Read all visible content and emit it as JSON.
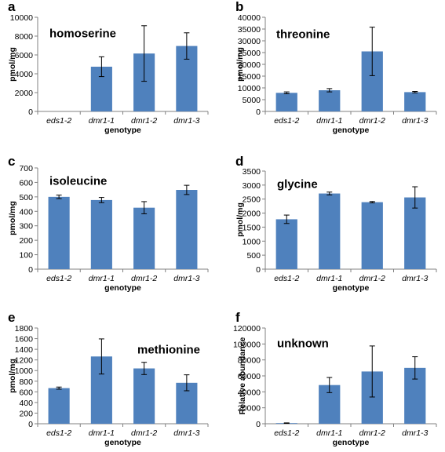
{
  "chart_data": [
    {
      "panel": "a",
      "type": "bar",
      "title": "homoserine",
      "categories": [
        "eds1-2",
        "dmr1-1",
        "dmr1-2",
        "dmr1-3"
      ],
      "values": [
        0,
        4750,
        6150,
        6950
      ],
      "errors": [
        0,
        1050,
        2950,
        1400
      ],
      "xlabel": "genotype",
      "ylabel": "pmol/mg",
      "ylim": [
        0,
        10000
      ],
      "yticks": [
        "0",
        "2000",
        "4000",
        "6000",
        "8000",
        "10000"
      ]
    },
    {
      "panel": "b",
      "type": "bar",
      "title": "threonine",
      "categories": [
        "eds1-2",
        "dmr1-1",
        "dmr1-2",
        "dmr1-3"
      ],
      "values": [
        7900,
        9000,
        25500,
        8200
      ],
      "errors": [
        400,
        700,
        10300,
        300
      ],
      "xlabel": "genotype",
      "ylabel": "pmol/mg",
      "ylim": [
        0,
        40000
      ],
      "yticks": [
        "0",
        "5000",
        "10000",
        "15000",
        "20000",
        "25000",
        "30000",
        "35000",
        "40000"
      ]
    },
    {
      "panel": "c",
      "type": "bar",
      "title": "isoleucine",
      "categories": [
        "eds1-2",
        "dmr1-1",
        "dmr1-2",
        "dmr1-3"
      ],
      "values": [
        500,
        478,
        425,
        548
      ],
      "errors": [
        12,
        18,
        42,
        32
      ],
      "xlabel": "genotype",
      "ylabel": "pmol/mg",
      "ylim": [
        0,
        700
      ],
      "yticks": [
        "0",
        "100",
        "200",
        "300",
        "400",
        "500",
        "600",
        "700"
      ]
    },
    {
      "panel": "d",
      "type": "bar",
      "title": "glycine",
      "categories": [
        "eds1-2",
        "dmr1-1",
        "dmr1-2",
        "dmr1-3"
      ],
      "values": [
        1780,
        2700,
        2390,
        2560
      ],
      "errors": [
        150,
        50,
        25,
        380
      ],
      "xlabel": "genotype",
      "ylabel": "pmol/mg",
      "ylim": [
        0,
        3500
      ],
      "yticks": [
        "0",
        "500",
        "1000",
        "1500",
        "2000",
        "2500",
        "3000",
        "3500"
      ]
    },
    {
      "panel": "e",
      "type": "bar",
      "title": "methionine",
      "categories": [
        "eds1-2",
        "dmr1-1",
        "dmr1-2",
        "dmr1-3"
      ],
      "values": [
        670,
        1265,
        1040,
        770
      ],
      "errors": [
        20,
        330,
        115,
        150
      ],
      "xlabel": "genotype",
      "ylabel": "pmol/mg",
      "ylim": [
        0,
        1800
      ],
      "yticks": [
        "0",
        "200",
        "400",
        "600",
        "800",
        "1000",
        "1200",
        "1400",
        "1600",
        "1800"
      ]
    },
    {
      "panel": "f",
      "type": "bar",
      "title": "unknown",
      "categories": [
        "eds1-2",
        "dmr1-1",
        "dmr1-2",
        "dmr1-3"
      ],
      "values": [
        800,
        48500,
        65500,
        70000
      ],
      "errors": [
        300,
        9500,
        32000,
        14000
      ],
      "xlabel": "genotype",
      "ylabel": "Relative abundance",
      "ylim": [
        0,
        120000
      ],
      "yticks": [
        "0",
        "20000",
        "40000",
        "60000",
        "80000",
        "100000",
        "120000"
      ]
    }
  ],
  "colors": {
    "bar": "#4f81bd",
    "axis": "#808080",
    "error_bar": "#000000"
  }
}
